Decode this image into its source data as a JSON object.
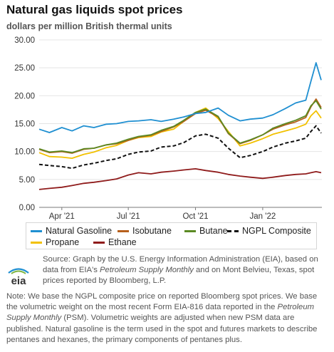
{
  "title": "Natural gas liquids spot prices",
  "subtitle": "dollars per million British thermal units",
  "colors": {
    "natural_gasoline": "#1f8fd1",
    "isobutane": "#b7601c",
    "butane": "#5b8a23",
    "ngpl_composite": "#111111",
    "propane": "#f2c100",
    "ethane": "#8f1b1b",
    "grid": "#e4e4e4",
    "axis": "#7a7a7a"
  },
  "source": {
    "prefix": "Source: Graph by the U.S. Energy Information Administration (EIA), based on data from EIA's ",
    "pub1": "Petroleum Supply Monthly",
    "middle": " and on Mont Belvieu, Texas, spot prices reported by Bloomberg, L.P."
  },
  "note": {
    "part1": "Note: We base the NGPL composite price on reported Bloomberg spot prices. We base the volumetric weight on the most recent Form EIA-816 data reported in the ",
    "pub": "Petroleum Supply Monthly",
    "part2": " (PSM). Volumetric weights are adjusted when new PSM data are published. Natural gasoline is the term used in the spot and futures markets to describe pentanes and hexanes, the primary components of pentanes plus."
  },
  "logo": {
    "text": "eia"
  },
  "chart_data": {
    "type": "line",
    "title": "Natural gas liquids spot prices",
    "subtitle": "dollars per million British thermal units",
    "ylim": [
      0,
      30
    ],
    "y_ticks": [
      "0.00",
      "5.00",
      "10.00",
      "15.00",
      "20.00",
      "25.00",
      "30.00"
    ],
    "xlim": [
      "2021-03-01",
      "2022-03-23"
    ],
    "x_ticks": [
      {
        "date": "2021-04-01",
        "label": "Apr '21"
      },
      {
        "date": "2021-07-01",
        "label": "Jul '21"
      },
      {
        "date": "2021-10-01",
        "label": "Oct '21"
      },
      {
        "date": "2022-01-01",
        "label": "Jan '22"
      }
    ],
    "grid": true,
    "legend_position": "bottom",
    "x": [
      "2021-03-01",
      "2021-03-15",
      "2021-04-01",
      "2021-04-15",
      "2021-05-01",
      "2021-05-15",
      "2021-06-01",
      "2021-06-15",
      "2021-07-01",
      "2021-07-15",
      "2021-08-01",
      "2021-08-15",
      "2021-09-01",
      "2021-09-15",
      "2021-10-01",
      "2021-10-15",
      "2021-11-01",
      "2021-11-15",
      "2021-12-01",
      "2021-12-15",
      "2022-01-01",
      "2022-01-15",
      "2022-02-01",
      "2022-02-15",
      "2022-03-01",
      "2022-03-08",
      "2022-03-15",
      "2022-03-22"
    ],
    "series": [
      {
        "name": "Natural Gasoline",
        "key": "natural_gasoline",
        "dash": false,
        "values": [
          14.0,
          13.4,
          14.3,
          13.7,
          14.6,
          14.3,
          14.9,
          15.0,
          15.4,
          15.5,
          15.7,
          15.4,
          15.8,
          16.2,
          16.8,
          17.0,
          17.8,
          16.5,
          15.5,
          15.8,
          16.0,
          16.6,
          17.7,
          18.7,
          19.2,
          22.6,
          25.9,
          22.8
        ]
      },
      {
        "name": "Isobutane",
        "key": "isobutane",
        "dash": false,
        "values": [
          10.4,
          9.8,
          10.0,
          9.7,
          10.4,
          10.6,
          11.2,
          11.4,
          12.0,
          12.6,
          12.9,
          13.6,
          14.4,
          15.4,
          16.8,
          17.4,
          16.2,
          13.2,
          11.4,
          12.0,
          13.0,
          14.0,
          14.8,
          15.3,
          16.1,
          18.0,
          19.4,
          17.9
        ]
      },
      {
        "name": "Butane",
        "key": "butane",
        "dash": false,
        "values": [
          10.5,
          9.9,
          10.1,
          9.8,
          10.5,
          10.6,
          11.2,
          11.5,
          12.2,
          12.7,
          13.0,
          13.8,
          14.5,
          15.6,
          17.0,
          17.6,
          16.3,
          13.3,
          11.5,
          12.1,
          13.0,
          14.2,
          15.0,
          15.6,
          16.4,
          18.2,
          19.1,
          17.6
        ]
      },
      {
        "name": "NGPL Composite",
        "key": "ngpl_composite",
        "dash": true,
        "values": [
          7.7,
          7.5,
          7.3,
          7.0,
          7.6,
          7.9,
          8.4,
          8.7,
          9.5,
          9.9,
          10.1,
          10.8,
          11.0,
          11.6,
          12.8,
          13.1,
          12.4,
          10.6,
          8.9,
          9.3,
          10.0,
          10.8,
          11.5,
          11.9,
          12.4,
          13.6,
          14.6,
          13.3
        ]
      },
      {
        "name": "Propane",
        "key": "propane",
        "dash": false,
        "values": [
          9.8,
          9.1,
          9.0,
          8.8,
          9.5,
          9.9,
          10.7,
          11.1,
          12.0,
          12.5,
          12.7,
          13.5,
          14.0,
          15.4,
          17.0,
          17.8,
          15.9,
          13.6,
          11.0,
          11.5,
          12.3,
          13.1,
          13.7,
          14.2,
          14.9,
          16.4,
          17.3,
          16.0
        ]
      },
      {
        "name": "Ethane",
        "key": "ethane",
        "dash": false,
        "values": [
          3.2,
          3.4,
          3.6,
          3.9,
          4.3,
          4.5,
          4.8,
          5.1,
          5.8,
          6.2,
          6.0,
          6.3,
          6.5,
          6.7,
          6.9,
          6.6,
          6.3,
          5.9,
          5.6,
          5.4,
          5.2,
          5.4,
          5.7,
          5.9,
          6.0,
          6.2,
          6.4,
          6.2
        ]
      }
    ]
  }
}
